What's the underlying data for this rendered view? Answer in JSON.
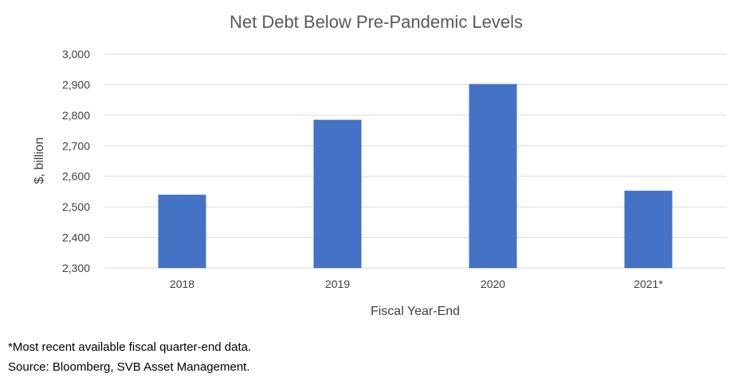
{
  "chart_data": {
    "type": "bar",
    "title": "Net Debt Below Pre-Pandemic Levels",
    "xlabel": "Fiscal Year-End",
    "ylabel": "$, billion",
    "categories": [
      "2018",
      "2019",
      "2020",
      "2021*"
    ],
    "values": [
      2540,
      2785,
      2902,
      2553
    ],
    "ylim": [
      2300,
      3000
    ],
    "yticks": [
      2300,
      2400,
      2500,
      2600,
      2700,
      2800,
      2900,
      3000
    ],
    "ytick_labels": [
      "2,300",
      "2,400",
      "2,500",
      "2,600",
      "2,700",
      "2,800",
      "2,900",
      "3,000"
    ],
    "grid": true,
    "bar_color": "#4472C4",
    "grid_color": "#D9D9D9"
  },
  "footnotes": {
    "note": "*Most recent available fiscal quarter-end data.",
    "source": "Source: Bloomberg, SVB Asset Management."
  }
}
